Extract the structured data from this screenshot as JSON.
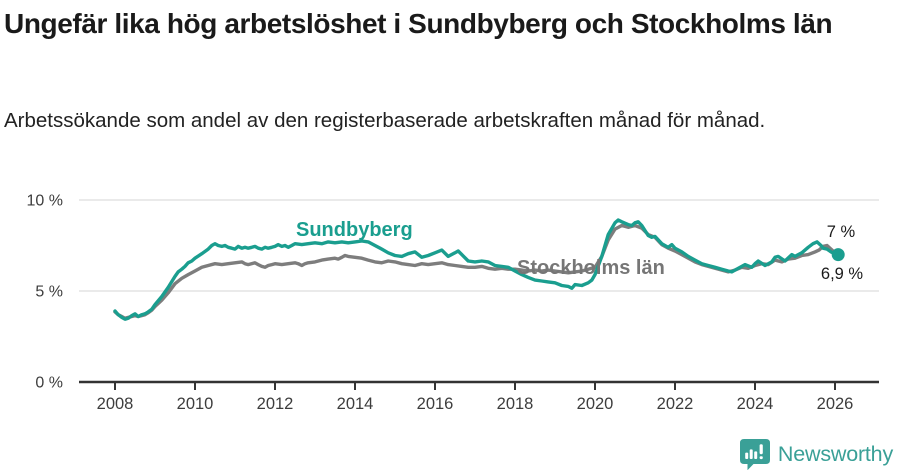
{
  "chart_data": {
    "type": "line",
    "title": "Ungefär lika hög arbetslöshet i Sundbyberg och Stockholms län",
    "subtitle": "Arbetssökande som andel av den registerbaserade arbetskraften månad för månad.",
    "unit": "%",
    "x_axis": {
      "ticks": [
        2008,
        2010,
        2012,
        2014,
        2016,
        2018,
        2020,
        2022,
        2024,
        2026
      ],
      "tick_labels": [
        "2008",
        "2010",
        "2012",
        "2014",
        "2016",
        "2018",
        "2020",
        "2022",
        "2024",
        "2026"
      ],
      "range_years": [
        2007.1,
        2027.1
      ]
    },
    "y_axis": {
      "ticks": [
        0,
        5,
        10
      ],
      "tick_labels": [
        "0 %",
        "5 %",
        "10 %"
      ],
      "range": [
        0,
        10
      ],
      "gridlines_at": [
        5,
        10
      ]
    },
    "legend_position": "inline-labels-on-lines",
    "series": [
      {
        "id": "sundbyberg",
        "name": "Sundbyberg",
        "color": "#1a9e8f",
        "end_label": "7 %",
        "end_dot": true,
        "points": [
          [
            2008.0,
            3.9
          ],
          [
            2008.08,
            3.7
          ],
          [
            2008.17,
            3.55
          ],
          [
            2008.25,
            3.45
          ],
          [
            2008.33,
            3.5
          ],
          [
            2008.42,
            3.65
          ],
          [
            2008.5,
            3.75
          ],
          [
            2008.58,
            3.6
          ],
          [
            2008.67,
            3.7
          ],
          [
            2008.75,
            3.75
          ],
          [
            2008.83,
            3.85
          ],
          [
            2008.92,
            4.0
          ],
          [
            2009.0,
            4.25
          ],
          [
            2009.17,
            4.7
          ],
          [
            2009.33,
            5.2
          ],
          [
            2009.5,
            5.8
          ],
          [
            2009.58,
            6.05
          ],
          [
            2009.67,
            6.2
          ],
          [
            2009.75,
            6.35
          ],
          [
            2009.83,
            6.55
          ],
          [
            2009.92,
            6.65
          ],
          [
            2010.0,
            6.8
          ],
          [
            2010.17,
            7.05
          ],
          [
            2010.33,
            7.3
          ],
          [
            2010.42,
            7.5
          ],
          [
            2010.5,
            7.6
          ],
          [
            2010.58,
            7.5
          ],
          [
            2010.67,
            7.45
          ],
          [
            2010.75,
            7.5
          ],
          [
            2010.83,
            7.4
          ],
          [
            2010.92,
            7.35
          ],
          [
            2011.0,
            7.3
          ],
          [
            2011.08,
            7.45
          ],
          [
            2011.17,
            7.35
          ],
          [
            2011.25,
            7.4
          ],
          [
            2011.33,
            7.35
          ],
          [
            2011.42,
            7.4
          ],
          [
            2011.5,
            7.45
          ],
          [
            2011.58,
            7.35
          ],
          [
            2011.67,
            7.3
          ],
          [
            2011.75,
            7.4
          ],
          [
            2011.83,
            7.35
          ],
          [
            2011.92,
            7.4
          ],
          [
            2012.0,
            7.45
          ],
          [
            2012.08,
            7.55
          ],
          [
            2012.17,
            7.45
          ],
          [
            2012.25,
            7.5
          ],
          [
            2012.33,
            7.4
          ],
          [
            2012.42,
            7.5
          ],
          [
            2012.5,
            7.6
          ],
          [
            2012.67,
            7.55
          ],
          [
            2012.83,
            7.6
          ],
          [
            2013.0,
            7.65
          ],
          [
            2013.17,
            7.6
          ],
          [
            2013.33,
            7.7
          ],
          [
            2013.5,
            7.65
          ],
          [
            2013.67,
            7.7
          ],
          [
            2013.83,
            7.65
          ],
          [
            2014.0,
            7.7
          ],
          [
            2014.17,
            7.75
          ],
          [
            2014.33,
            7.7
          ],
          [
            2014.5,
            7.5
          ],
          [
            2014.67,
            7.3
          ],
          [
            2014.83,
            7.1
          ],
          [
            2015.0,
            6.95
          ],
          [
            2015.17,
            6.9
          ],
          [
            2015.33,
            7.05
          ],
          [
            2015.5,
            7.15
          ],
          [
            2015.67,
            6.85
          ],
          [
            2015.83,
            6.95
          ],
          [
            2016.0,
            7.1
          ],
          [
            2016.17,
            7.25
          ],
          [
            2016.33,
            6.9
          ],
          [
            2016.5,
            7.1
          ],
          [
            2016.58,
            7.2
          ],
          [
            2016.67,
            7.0
          ],
          [
            2016.83,
            6.65
          ],
          [
            2017.0,
            6.6
          ],
          [
            2017.17,
            6.65
          ],
          [
            2017.33,
            6.6
          ],
          [
            2017.5,
            6.4
          ],
          [
            2017.67,
            6.35
          ],
          [
            2017.83,
            6.3
          ],
          [
            2018.0,
            6.1
          ],
          [
            2018.17,
            5.9
          ],
          [
            2018.33,
            5.75
          ],
          [
            2018.5,
            5.6
          ],
          [
            2018.67,
            5.55
          ],
          [
            2018.83,
            5.5
          ],
          [
            2019.0,
            5.45
          ],
          [
            2019.17,
            5.3
          ],
          [
            2019.33,
            5.25
          ],
          [
            2019.42,
            5.15
          ],
          [
            2019.5,
            5.35
          ],
          [
            2019.67,
            5.3
          ],
          [
            2019.83,
            5.45
          ],
          [
            2019.92,
            5.6
          ],
          [
            2020.0,
            5.9
          ],
          [
            2020.17,
            6.9
          ],
          [
            2020.33,
            8.1
          ],
          [
            2020.5,
            8.75
          ],
          [
            2020.58,
            8.9
          ],
          [
            2020.67,
            8.8
          ],
          [
            2020.83,
            8.65
          ],
          [
            2020.92,
            8.6
          ],
          [
            2021.0,
            8.75
          ],
          [
            2021.08,
            8.8
          ],
          [
            2021.17,
            8.6
          ],
          [
            2021.33,
            8.05
          ],
          [
            2021.42,
            7.95
          ],
          [
            2021.5,
            8.0
          ],
          [
            2021.67,
            7.6
          ],
          [
            2021.83,
            7.4
          ],
          [
            2021.92,
            7.55
          ],
          [
            2022.0,
            7.35
          ],
          [
            2022.17,
            7.15
          ],
          [
            2022.33,
            6.9
          ],
          [
            2022.5,
            6.7
          ],
          [
            2022.67,
            6.5
          ],
          [
            2022.83,
            6.4
          ],
          [
            2023.0,
            6.3
          ],
          [
            2023.17,
            6.2
          ],
          [
            2023.33,
            6.1
          ],
          [
            2023.42,
            6.05
          ],
          [
            2023.58,
            6.25
          ],
          [
            2023.75,
            6.45
          ],
          [
            2023.92,
            6.3
          ],
          [
            2024.0,
            6.5
          ],
          [
            2024.08,
            6.65
          ],
          [
            2024.25,
            6.4
          ],
          [
            2024.42,
            6.6
          ],
          [
            2024.5,
            6.85
          ],
          [
            2024.58,
            6.9
          ],
          [
            2024.75,
            6.65
          ],
          [
            2024.92,
            7.0
          ],
          [
            2025.0,
            6.9
          ],
          [
            2025.17,
            7.1
          ],
          [
            2025.33,
            7.4
          ],
          [
            2025.45,
            7.6
          ],
          [
            2025.55,
            7.7
          ],
          [
            2025.65,
            7.5
          ],
          [
            2025.7,
            7.35
          ],
          [
            2025.8,
            7.3
          ],
          [
            2025.9,
            7.15
          ],
          [
            2026.0,
            7.05
          ],
          [
            2026.08,
            7.0
          ]
        ]
      },
      {
        "id": "stockholms-lan",
        "name": "Stockholms län",
        "color": "#7d7d7d",
        "end_label": "6,9 %",
        "end_dot": false,
        "points": [
          [
            2008.0,
            3.85
          ],
          [
            2008.08,
            3.7
          ],
          [
            2008.17,
            3.6
          ],
          [
            2008.25,
            3.5
          ],
          [
            2008.33,
            3.55
          ],
          [
            2008.42,
            3.6
          ],
          [
            2008.5,
            3.65
          ],
          [
            2008.58,
            3.6
          ],
          [
            2008.67,
            3.65
          ],
          [
            2008.75,
            3.7
          ],
          [
            2008.83,
            3.8
          ],
          [
            2008.92,
            3.95
          ],
          [
            2009.0,
            4.15
          ],
          [
            2009.17,
            4.5
          ],
          [
            2009.33,
            4.9
          ],
          [
            2009.5,
            5.4
          ],
          [
            2009.67,
            5.7
          ],
          [
            2009.83,
            5.9
          ],
          [
            2010.0,
            6.1
          ],
          [
            2010.17,
            6.3
          ],
          [
            2010.33,
            6.4
          ],
          [
            2010.5,
            6.5
          ],
          [
            2010.67,
            6.45
          ],
          [
            2010.83,
            6.5
          ],
          [
            2011.0,
            6.55
          ],
          [
            2011.17,
            6.6
          ],
          [
            2011.25,
            6.5
          ],
          [
            2011.33,
            6.45
          ],
          [
            2011.5,
            6.55
          ],
          [
            2011.58,
            6.45
          ],
          [
            2011.67,
            6.35
          ],
          [
            2011.75,
            6.3
          ],
          [
            2011.83,
            6.4
          ],
          [
            2011.92,
            6.45
          ],
          [
            2012.0,
            6.5
          ],
          [
            2012.17,
            6.45
          ],
          [
            2012.33,
            6.5
          ],
          [
            2012.5,
            6.55
          ],
          [
            2012.58,
            6.5
          ],
          [
            2012.67,
            6.4
          ],
          [
            2012.75,
            6.5
          ],
          [
            2012.83,
            6.55
          ],
          [
            2013.0,
            6.6
          ],
          [
            2013.17,
            6.7
          ],
          [
            2013.33,
            6.75
          ],
          [
            2013.5,
            6.8
          ],
          [
            2013.58,
            6.75
          ],
          [
            2013.67,
            6.85
          ],
          [
            2013.75,
            6.95
          ],
          [
            2013.83,
            6.9
          ],
          [
            2014.0,
            6.85
          ],
          [
            2014.17,
            6.8
          ],
          [
            2014.33,
            6.7
          ],
          [
            2014.5,
            6.6
          ],
          [
            2014.67,
            6.55
          ],
          [
            2014.83,
            6.65
          ],
          [
            2015.0,
            6.6
          ],
          [
            2015.17,
            6.5
          ],
          [
            2015.33,
            6.45
          ],
          [
            2015.5,
            6.4
          ],
          [
            2015.67,
            6.5
          ],
          [
            2015.83,
            6.45
          ],
          [
            2016.0,
            6.5
          ],
          [
            2016.17,
            6.55
          ],
          [
            2016.33,
            6.45
          ],
          [
            2016.5,
            6.4
          ],
          [
            2016.67,
            6.35
          ],
          [
            2016.83,
            6.3
          ],
          [
            2017.0,
            6.3
          ],
          [
            2017.17,
            6.35
          ],
          [
            2017.33,
            6.25
          ],
          [
            2017.5,
            6.2
          ],
          [
            2017.67,
            6.25
          ],
          [
            2017.83,
            6.2
          ],
          [
            2018.0,
            6.2
          ],
          [
            2018.17,
            6.15
          ],
          [
            2018.33,
            6.1
          ],
          [
            2018.5,
            6.15
          ],
          [
            2018.67,
            6.1
          ],
          [
            2018.83,
            6.15
          ],
          [
            2019.0,
            6.1
          ],
          [
            2019.17,
            6.05
          ],
          [
            2019.33,
            6.0
          ],
          [
            2019.5,
            6.05
          ],
          [
            2019.67,
            6.1
          ],
          [
            2019.83,
            6.2
          ],
          [
            2020.0,
            6.3
          ],
          [
            2020.17,
            6.9
          ],
          [
            2020.33,
            7.8
          ],
          [
            2020.5,
            8.4
          ],
          [
            2020.67,
            8.6
          ],
          [
            2020.83,
            8.5
          ],
          [
            2021.0,
            8.6
          ],
          [
            2021.17,
            8.45
          ],
          [
            2021.33,
            8.1
          ],
          [
            2021.5,
            7.95
          ],
          [
            2021.67,
            7.55
          ],
          [
            2021.83,
            7.35
          ],
          [
            2022.0,
            7.2
          ],
          [
            2022.17,
            7.0
          ],
          [
            2022.33,
            6.8
          ],
          [
            2022.5,
            6.6
          ],
          [
            2022.67,
            6.45
          ],
          [
            2022.83,
            6.35
          ],
          [
            2023.0,
            6.25
          ],
          [
            2023.17,
            6.15
          ],
          [
            2023.33,
            6.05
          ],
          [
            2023.5,
            6.15
          ],
          [
            2023.67,
            6.3
          ],
          [
            2023.83,
            6.25
          ],
          [
            2024.0,
            6.4
          ],
          [
            2024.17,
            6.5
          ],
          [
            2024.33,
            6.45
          ],
          [
            2024.5,
            6.7
          ],
          [
            2024.67,
            6.6
          ],
          [
            2024.83,
            6.75
          ],
          [
            2025.0,
            6.8
          ],
          [
            2025.17,
            6.95
          ],
          [
            2025.33,
            7.0
          ],
          [
            2025.5,
            7.15
          ],
          [
            2025.6,
            7.25
          ],
          [
            2025.7,
            7.45
          ],
          [
            2025.8,
            7.5
          ],
          [
            2025.9,
            7.3
          ],
          [
            2026.0,
            7.1
          ],
          [
            2026.08,
            6.9
          ]
        ]
      }
    ],
    "colors": {
      "grid": "#dddddd",
      "axis": "#333333",
      "tick_text": "#3d3d3d",
      "annotation_text": "#1a1a1a"
    }
  },
  "footer": {
    "brand": "Newsworthy",
    "logo_icon": "speech-bubble-bar-chart-exclamation",
    "brand_color": "#3aa097"
  }
}
